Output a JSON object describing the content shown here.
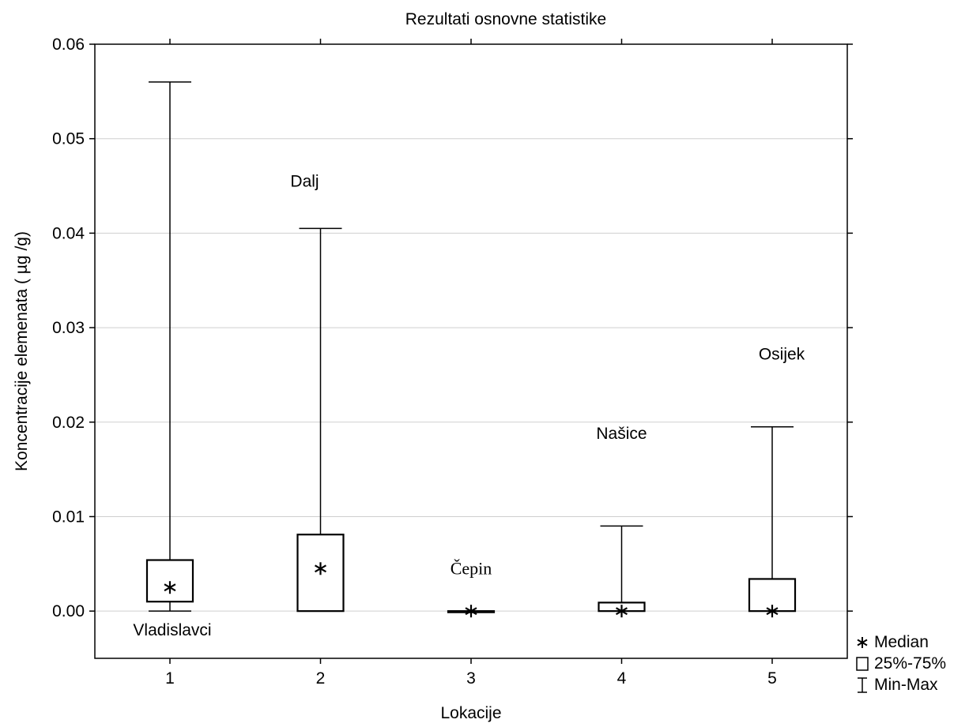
{
  "chart_data": {
    "type": "boxplot",
    "title": "Rezultati osnovne statistike",
    "xlabel": "Lokacije",
    "ylabel": "Koncentracije elemenata ( µg /g)",
    "ylim": [
      -0.005,
      0.06
    ],
    "yticks": [
      "0.00",
      "0.01",
      "0.02",
      "0.03",
      "0.04",
      "0.05",
      "0.06"
    ],
    "grid": true,
    "legend_position": "bottom-right, outside plot",
    "categories": [
      "1",
      "2",
      "3",
      "4",
      "5"
    ],
    "series": [
      {
        "category": "1",
        "location": "Vladislavci",
        "min": 0.0,
        "q1": 0.001,
        "median": 0.0025,
        "q3": 0.0054,
        "max": 0.056
      },
      {
        "category": "2",
        "location": "Dalj",
        "min": 0.0,
        "q1": 0.0,
        "median": 0.0045,
        "q3": 0.0081,
        "max": 0.0405
      },
      {
        "category": "3",
        "location": "Čepin",
        "min": 0.0,
        "q1": 0.0,
        "median": 0.0,
        "q3": 0.0,
        "max": 0.0
      },
      {
        "category": "4",
        "location": "Našice",
        "min": 0.0,
        "q1": 0.0,
        "median": 0.0,
        "q3": 0.0009,
        "max": 0.009
      },
      {
        "category": "5",
        "location": "Osijek",
        "min": 0.0,
        "q1": 0.0,
        "median": 0.0,
        "q3": 0.0034,
        "max": 0.0195
      }
    ],
    "annotations": [
      {
        "text": "Vladislavci",
        "x": "1",
        "y": -0.002
      },
      {
        "text": "Dalj",
        "x": "2",
        "y": 0.0455
      },
      {
        "text": "Čepin",
        "x": "3",
        "y": 0.0045
      },
      {
        "text": "Našice",
        "x": "4",
        "y": 0.0188
      },
      {
        "text": "Osijek",
        "x": "5",
        "y": 0.0272
      }
    ],
    "legend": [
      "Median",
      "25%-75%",
      "Min-Max"
    ]
  }
}
